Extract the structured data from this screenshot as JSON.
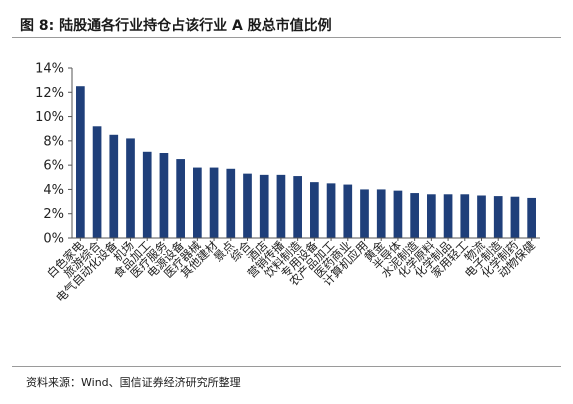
{
  "header": {
    "title": "图 8:  陆股通各行业持仓占该行业 A 股总市值比例"
  },
  "footer": {
    "source": "资料来源：Wind、国信证券经济研究所整理"
  },
  "colors": {
    "bar": "#1f3f7a",
    "axis": "#555555"
  },
  "chart_data": {
    "type": "bar",
    "title": "",
    "xlabel": "",
    "ylabel": "",
    "ylim": [
      0,
      14
    ],
    "yticks": [
      "0%",
      "2%",
      "4%",
      "6%",
      "8%",
      "10%",
      "12%",
      "14%"
    ],
    "legend": "none",
    "grid": false,
    "categories": [
      "白色家电",
      "旅游综合",
      "电气自动化设备",
      "机场",
      "食品加工",
      "医疗服务",
      "电源设备",
      "医疗器械",
      "其他建材",
      "景点",
      "综合",
      "酒店",
      "营销传播",
      "饮料制造",
      "专用设备",
      "农产品加工",
      "医药商业",
      "计算机应用",
      "黄金",
      "半导体",
      "水泥制造",
      "化学原料",
      "化学制品",
      "家用轻工",
      "物流",
      "电子制造",
      "化学制药",
      "动物保健"
    ],
    "values": [
      12.5,
      9.2,
      8.5,
      8.2,
      7.1,
      7.0,
      6.5,
      5.8,
      5.8,
      5.7,
      5.3,
      5.2,
      5.2,
      5.1,
      4.6,
      4.5,
      4.4,
      4.0,
      4.0,
      3.9,
      3.7,
      3.6,
      3.6,
      3.6,
      3.5,
      3.45,
      3.4,
      3.3
    ]
  }
}
